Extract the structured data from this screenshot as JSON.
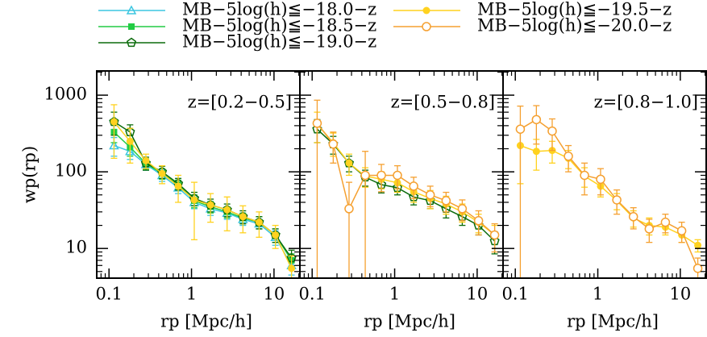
{
  "chart_data": [
    {
      "type": "line",
      "log_x": true,
      "log_y": true,
      "annotation": "z=[0.2−0.5]",
      "x_label": "rp [Mpc/h]",
      "y_label": "wp(rp)",
      "xlim": [
        0.071,
        20.6
      ],
      "ylim": [
        4.1,
        2070
      ],
      "xticks": [
        0.1,
        1,
        10
      ],
      "yticks": [
        10,
        100,
        1000
      ],
      "x": [
        0.115,
        0.18,
        0.28,
        0.44,
        0.69,
        1.08,
        1.7,
        2.7,
        4.2,
        6.6,
        10.4,
        16.3
      ],
      "series": [
        {
          "name": "MB−5log(h)≦−18.0−z",
          "color": "#3cc6e0",
          "marker": "triangle",
          "values": [
            220,
            185,
            125,
            90,
            62,
            40,
            33,
            29,
            24,
            21,
            14,
            6
          ],
          "errors": [
            60,
            40,
            20,
            15,
            10,
            7,
            6,
            5,
            4,
            3,
            3,
            1.5
          ]
        },
        {
          "name": "MB−5log(h)≦−18.5−z",
          "color": "#22cc44",
          "marker": "square",
          "values": [
            330,
            210,
            128,
            95,
            68,
            42,
            35,
            30,
            25,
            22,
            15,
            7
          ],
          "errors": [
            90,
            50,
            20,
            15,
            10,
            8,
            6,
            5,
            4,
            4,
            3,
            1.5
          ]
        },
        {
          "name": "MB−5log(h)≦−19.0−z",
          "color": "#0b6b0b",
          "marker": "pentagon",
          "values": [
            450,
            330,
            130,
            100,
            70,
            45,
            37,
            32,
            26,
            22,
            15,
            7.5
          ],
          "errors": [
            150,
            80,
            25,
            18,
            12,
            9,
            7,
            6,
            5,
            4,
            3,
            2
          ]
        },
        {
          "name": "MB−5log(h)≦−19.5−z",
          "color": "#ffd21f",
          "marker": "circle",
          "values": [
            450,
            250,
            140,
            95,
            65,
            43,
            37,
            32,
            26,
            22,
            15,
            5.5
          ],
          "errors": [
            300,
            120,
            30,
            25,
            25,
            30,
            15,
            15,
            10,
            8,
            5,
            2.5
          ]
        }
      ]
    },
    {
      "type": "line",
      "log_x": true,
      "log_y": true,
      "annotation": "z=[0.5−0.8]",
      "x_label": "rp [Mpc/h]",
      "xlim": [
        0.071,
        20.6
      ],
      "ylim": [
        4.1,
        2070
      ],
      "xticks": [
        0.1,
        1,
        10
      ],
      "yticks": [
        10,
        100,
        1000
      ],
      "x": [
        0.115,
        0.18,
        0.28,
        0.44,
        0.69,
        1.08,
        1.7,
        2.7,
        4.2,
        6.6,
        10.4,
        16.3
      ],
      "series": [
        {
          "name": "MB−5log(h)≦−19.0−z",
          "color": "#0b6b0b",
          "marker": "pentagon",
          "values": [
            360,
            230,
            130,
            85,
            68,
            62,
            47,
            42,
            33,
            26,
            20,
            12.5
          ],
          "errors": [
            120,
            60,
            30,
            20,
            15,
            12,
            10,
            9,
            8,
            6,
            5,
            4
          ]
        },
        {
          "name": "MB−5log(h)≦−19.5−z",
          "color": "#ffd21f",
          "marker": "circle",
          "values": [
            420,
            240,
            130,
            88,
            80,
            72,
            55,
            45,
            38,
            30,
            22,
            15
          ],
          "errors": [
            180,
            80,
            40,
            25,
            20,
            18,
            15,
            12,
            10,
            8,
            6,
            5
          ]
        },
        {
          "name": "MB−5log(h)≦−20.0−z",
          "color": "#f5a030",
          "marker": "open-circle",
          "values": [
            430,
            230,
            33,
            90,
            90,
            90,
            65,
            50,
            42,
            33,
            23,
            15
          ],
          "errors": [
            430,
            100,
            40,
            95,
            35,
            30,
            20,
            15,
            12,
            10,
            8,
            6
          ]
        }
      ]
    },
    {
      "type": "line",
      "log_x": true,
      "log_y": true,
      "annotation": "z=[0.8−1.0]",
      "x_label": "rp [Mpc/h]",
      "xlim": [
        0.071,
        20.6
      ],
      "ylim": [
        4.1,
        2070
      ],
      "xticks": [
        0.1,
        1,
        10
      ],
      "yticks": [
        10,
        100,
        1000
      ],
      "x": [
        0.115,
        0.18,
        0.28,
        0.44,
        0.69,
        1.08,
        1.7,
        2.7,
        4.2,
        6.6,
        10.4,
        16.3
      ],
      "series": [
        {
          "name": "MB−5log(h)≦−19.5−z",
          "color": "#ffd21f",
          "marker": "circle",
          "values": [
            220,
            185,
            190,
            150,
            88,
            65,
            42,
            25,
            20,
            19,
            15,
            11
          ],
          "errors": [
            150,
            80,
            60,
            40,
            25,
            18,
            10,
            6,
            5,
            4,
            3,
            2
          ]
        },
        {
          "name": "MB−5log(h)≦−20.0−z",
          "color": "#f5a030",
          "marker": "open-circle",
          "values": [
            360,
            480,
            340,
            160,
            90,
            80,
            43,
            26,
            18,
            22,
            17,
            5.5
          ],
          "errors": [
            360,
            250,
            150,
            60,
            40,
            30,
            15,
            8,
            6,
            6,
            5,
            2
          ]
        }
      ]
    }
  ]
}
